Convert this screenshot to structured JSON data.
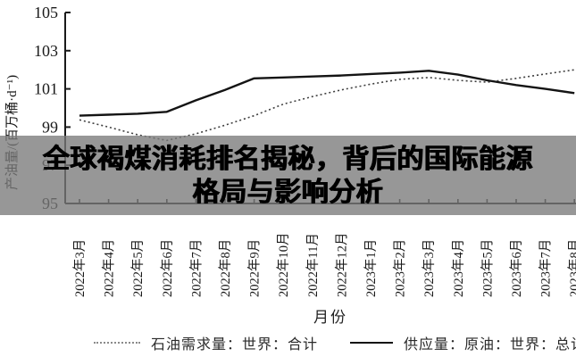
{
  "headline": {
    "full_text": "全球褐煤消耗排名揭秘，背后的国际能源格局与影响分析",
    "lines": [
      "全球褐煤消耗排名揭秘，背后的国际能源",
      "格局与影响分析"
    ]
  },
  "chart_data": {
    "type": "line",
    "title": "",
    "xlabel": "月份",
    "ylabel": "产油量/(百万桶·d⁻¹)",
    "ylim": [
      95,
      105
    ],
    "yticks": [
      95,
      97,
      99,
      101,
      103,
      105
    ],
    "grid": false,
    "legend_position": "bottom",
    "categories": [
      "2022年3月",
      "2022年4月",
      "2022年5月",
      "2022年6月",
      "2022年7月",
      "2022年8月",
      "2022年9月",
      "2022年10月",
      "2022年11月",
      "2022年12月",
      "2023年1月",
      "2023年2月",
      "2023年3月",
      "2023年4月",
      "2023年5月",
      "2023年6月",
      "2023年7月",
      "2023年8月"
    ],
    "series": [
      {
        "name": "石油需求量：世界：合计",
        "style": "dotted",
        "color": "#3f3f3f",
        "values": [
          99.38,
          99.0,
          98.6,
          98.3,
          98.65,
          99.1,
          99.6,
          100.2,
          100.6,
          100.95,
          101.25,
          101.5,
          101.6,
          101.45,
          101.35,
          101.55,
          101.78,
          102.0
        ]
      },
      {
        "name": "供应量：原油：世界：总计",
        "style": "solid",
        "color": "#141414",
        "values": [
          99.6,
          99.65,
          99.7,
          99.8,
          100.4,
          100.95,
          101.55,
          101.6,
          101.65,
          101.7,
          101.78,
          101.85,
          101.95,
          101.75,
          101.45,
          101.2,
          101.0,
          100.78
        ]
      }
    ]
  },
  "colors": {
    "overlay_band": "rgba(122,122,122,0.78)",
    "axis": "#1a1a1a",
    "headline_text": "#000000",
    "background": "#ffffff"
  }
}
